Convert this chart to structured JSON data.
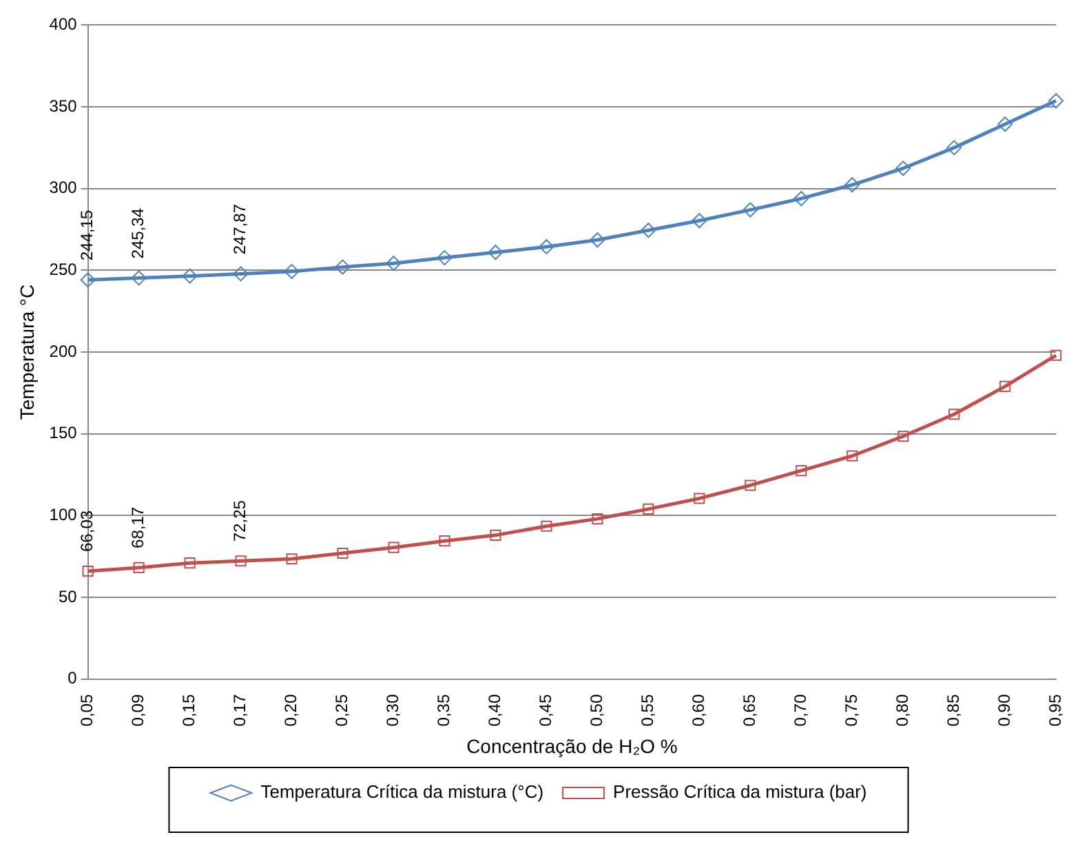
{
  "chart_data": {
    "type": "line",
    "xlabel": "Concentração de H₂O %",
    "ylabel": "Temperatura °C",
    "categories": [
      "0,05",
      "0,09",
      "0,15",
      "0,17",
      "0,20",
      "0,25",
      "0,30",
      "0,35",
      "0,40",
      "0,45",
      "0,50",
      "0,55",
      "0,60",
      "0,65",
      "0,70",
      "0,75",
      "0,80",
      "0,85",
      "0,90",
      "0,95"
    ],
    "series": [
      {
        "name": "Temperatura Crítica da mistura (°C)",
        "color": "#4f81bd",
        "marker": "diamond",
        "values": [
          244.15,
          245.34,
          246.5,
          247.87,
          249.3,
          252,
          254.3,
          257.7,
          261,
          264.4,
          268.6,
          274.5,
          280.4,
          287,
          293.9,
          302.3,
          312.4,
          325,
          339.4,
          353.7
        ],
        "value_labels": [
          "244,15",
          "245,34",
          null,
          "247,87",
          null,
          null,
          null,
          null,
          null,
          null,
          null,
          null,
          null,
          null,
          null,
          null,
          null,
          null,
          null,
          null
        ]
      },
      {
        "name": "Pressão Crítica da mistura (bar)",
        "color": "#c0504d",
        "marker": "square",
        "values": [
          66.03,
          68.17,
          71,
          72.25,
          73.5,
          77,
          80.5,
          84.5,
          88,
          93.5,
          98,
          104,
          110.5,
          118.5,
          127.5,
          136.5,
          148.5,
          162,
          179,
          198
        ],
        "value_labels": [
          "66,03",
          "68,17",
          null,
          "72,25",
          null,
          null,
          null,
          null,
          null,
          null,
          null,
          null,
          null,
          null,
          null,
          null,
          null,
          null,
          null,
          null
        ]
      }
    ],
    "ylim": [
      0,
      400
    ],
    "yticks": [
      0,
      50,
      100,
      150,
      200,
      250,
      300,
      350,
      400
    ],
    "grid": "y",
    "legend": "bottom"
  }
}
